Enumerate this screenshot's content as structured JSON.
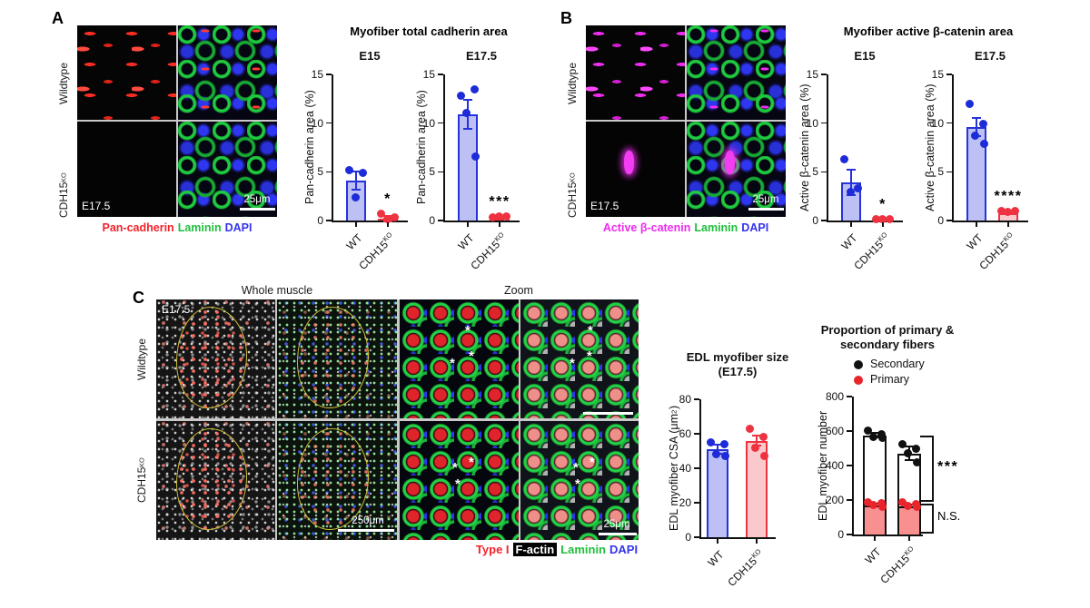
{
  "figure": {
    "panel_a": {
      "label": "A",
      "row_labels": [
        "Wildtype",
        "CDH15^KO"
      ],
      "stage_label": "E17.5",
      "scale_bar": "25μm",
      "caption": [
        {
          "text": "Pan-cadherin",
          "color": "#F3222A"
        },
        {
          "text": "Laminin",
          "color": "#1FBE3C"
        },
        {
          "text": "DAPI",
          "color": "#3333F0"
        }
      ],
      "charts_title": "Myofiber total cadherin area"
    },
    "panel_b": {
      "label": "B",
      "row_labels": [
        "Wildtype",
        "CDH15^KO"
      ],
      "stage_label": "E17.5",
      "scale_bar": "25μm",
      "caption": [
        {
          "text": "Active β-catenin",
          "color": "#EE2BEE"
        },
        {
          "text": "Laminin",
          "color": "#1FBE3C"
        },
        {
          "text": "DAPI",
          "color": "#3333F0"
        }
      ],
      "charts_title": "Myofiber active β-catenin area"
    },
    "panel_c": {
      "label": "C",
      "column_headers": [
        "Whole muscle",
        "Zoom"
      ],
      "row_labels": [
        "Wildtype",
        "CDH15^KO"
      ],
      "stage_label": "E17.5",
      "scale_bar_whole": "250μm",
      "scale_bar_zoom": "25μm",
      "asterisk_mark": "*",
      "caption": [
        {
          "text": "Type I",
          "color": "#F3222A"
        },
        {
          "text": "F-actin",
          "color": "#FFFFFF",
          "bg": "#000000"
        },
        {
          "text": "Laminin",
          "color": "#1FBE3C"
        },
        {
          "text": "DAPI",
          "color": "#3333F0"
        }
      ]
    }
  },
  "style_colors": {
    "blue_stroke": "#2633D9",
    "blue_fill": "#BCC0F4",
    "blue_dot": "#1D2BD8",
    "red_stroke": "#EE3340",
    "red_fill": "#F9C9CC",
    "red_dot": "#EE3340",
    "black": "#111111",
    "salmon_fill": "#F99090",
    "primary_dot": "#E9242B"
  },
  "chart_data": [
    {
      "id": "cadherin_e15",
      "type": "bar",
      "title": "E15",
      "ylabel": "Pan-cadherin area (%)",
      "ylim": [
        0,
        15
      ],
      "yticks": [
        0,
        5,
        10,
        15
      ],
      "categories": [
        "WT",
        "CDH15^KO"
      ],
      "bar_styles": [
        "blue",
        "red"
      ],
      "series": [
        {
          "name": "Pan-cadherin area",
          "values": [
            4.1,
            0.2
          ],
          "errors": [
            0.9,
            0.3
          ],
          "points": [
            [
              5.2,
              4.9,
              2.4
            ],
            [
              0.7,
              0.3,
              0.1
            ]
          ]
        }
      ],
      "significance": [
        null,
        "*"
      ]
    },
    {
      "id": "cadherin_e175",
      "type": "bar",
      "title": "E17.5",
      "ylabel": "Pan-cadherin area (%)",
      "ylim": [
        0,
        15
      ],
      "yticks": [
        0,
        5,
        10,
        15
      ],
      "categories": [
        "WT",
        "CDH15^KO"
      ],
      "bar_styles": [
        "blue",
        "red"
      ],
      "series": [
        {
          "name": "Pan-cadherin area",
          "values": [
            10.9,
            0.25
          ],
          "errors": [
            1.5,
            0.2
          ],
          "points": [
            [
              12.8,
              13.5,
              11.0,
              6.6
            ],
            [
              0.3,
              0.45,
              0.4
            ]
          ]
        }
      ],
      "significance": [
        null,
        "***"
      ]
    },
    {
      "id": "bcatenin_e15",
      "type": "bar",
      "title": "E15",
      "ylabel": "Active β-catenin area (%)",
      "ylim": [
        0,
        15
      ],
      "yticks": [
        0,
        5,
        10,
        15
      ],
      "categories": [
        "WT",
        "CDH15^KO"
      ],
      "bar_styles": [
        "blue",
        "red"
      ],
      "series": [
        {
          "name": "Active β-catenin area",
          "values": [
            3.9,
            0.1
          ],
          "errors": [
            1.3,
            0.08
          ],
          "points": [
            [
              6.3,
              3.3,
              2.9
            ],
            [
              0.1,
              0.15,
              0.1
            ]
          ]
        }
      ],
      "significance": [
        null,
        "*"
      ]
    },
    {
      "id": "bcatenin_e175",
      "type": "bar",
      "title": "E17.5",
      "ylabel": "Active β-catenin area (%)",
      "ylim": [
        0,
        15
      ],
      "yticks": [
        0,
        5,
        10,
        15
      ],
      "categories": [
        "WT",
        "CDH15^KO"
      ],
      "bar_styles": [
        "blue",
        "red"
      ],
      "series": [
        {
          "name": "Active β-catenin area",
          "values": [
            9.6,
            0.75
          ],
          "errors": [
            0.9,
            0.15
          ],
          "points": [
            [
              12.0,
              9.9,
              8.7,
              7.9
            ],
            [
              1.0,
              0.95,
              0.85
            ]
          ]
        }
      ],
      "significance": [
        null,
        "****"
      ]
    },
    {
      "id": "edl_size",
      "type": "bar",
      "title": "EDL myofiber size",
      "subtitle": "(E17.5)",
      "ylabel": "EDL myofiber CSA (μm^2)",
      "ylim": [
        0,
        80
      ],
      "yticks": [
        0,
        20,
        40,
        60,
        80
      ],
      "categories": [
        "WT",
        "CDH15^KO"
      ],
      "bar_styles": [
        "blue",
        "red"
      ],
      "series": [
        {
          "name": "EDL myofiber CSA",
          "values": [
            51,
            56
          ],
          "errors": [
            2.5,
            3
          ],
          "points": [
            [
              55,
              54,
              48,
              47
            ],
            [
              63,
              58,
              52,
              47
            ]
          ]
        }
      ],
      "significance": [
        null,
        null
      ]
    },
    {
      "id": "fiber_number",
      "type": "bar",
      "title": "Proportion of primary &",
      "subtitle": "secondary fibers",
      "legend": [
        {
          "label": "Secondary",
          "color": "#111111"
        },
        {
          "label": "Primary",
          "color": "#E9242B"
        }
      ],
      "ylabel": "EDL myofiber number",
      "ylim": [
        0,
        800
      ],
      "yticks": [
        0,
        200,
        400,
        600,
        800
      ],
      "categories": [
        "WT",
        "CDH15^KO"
      ],
      "series": [
        {
          "name": "Secondary",
          "style": "open-black",
          "values": [
            575,
            470
          ],
          "errors": [
            15,
            40
          ],
          "points": [
            [
              605,
              580,
              565,
              560
            ],
            [
              525,
              500,
              470,
              420
            ]
          ]
        },
        {
          "name": "Primary",
          "style": "salmon-black",
          "values": [
            170,
            165
          ],
          "errors": [
            8,
            8
          ],
          "points": [
            [
              185,
              180,
              172,
              162
            ],
            [
              185,
              175,
              165,
              158
            ]
          ]
        }
      ],
      "sig_brackets": [
        {
          "label": "***",
          "from": 575,
          "to": 190
        },
        {
          "label": "N.S.",
          "from": 180,
          "to": 5
        }
      ]
    }
  ]
}
